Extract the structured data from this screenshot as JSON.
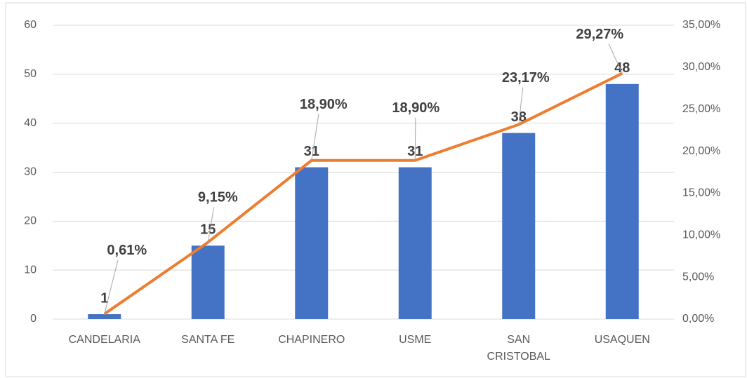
{
  "chart_data": {
    "type": "bar",
    "categories": [
      "CANDELARIA",
      "SANTA FE",
      "CHAPINERO",
      "USME",
      "SAN CRISTOBAL",
      "USAQUEN"
    ],
    "series": [
      {
        "type": "bar",
        "color": "#4472c4",
        "values": [
          1,
          15,
          31,
          31,
          38,
          48
        ]
      },
      {
        "type": "line",
        "axis": "y2",
        "color": "#ed7d31",
        "values": [
          0.61,
          9.15,
          18.9,
          18.9,
          23.17,
          29.27
        ],
        "value_labels": [
          "0,61%",
          "9,15%",
          "18,90%",
          "18,90%",
          "23,17%",
          "29,27%"
        ]
      }
    ],
    "ylim": [
      0,
      60
    ],
    "yticks": [
      0,
      10,
      20,
      30,
      40,
      50,
      60
    ],
    "y2lim": [
      0,
      35
    ],
    "y2ticks": [
      {
        "value": 0,
        "label": "0,00%"
      },
      {
        "value": 5,
        "label": "5,00%"
      },
      {
        "value": 10,
        "label": "10,00%"
      },
      {
        "value": 15,
        "label": "15,00%"
      },
      {
        "value": 20,
        "label": "20,00%"
      },
      {
        "value": 25,
        "label": "25,00%"
      },
      {
        "value": 30,
        "label": "30,00%"
      },
      {
        "value": 35,
        "label": "35,00%"
      }
    ],
    "grid": true
  }
}
